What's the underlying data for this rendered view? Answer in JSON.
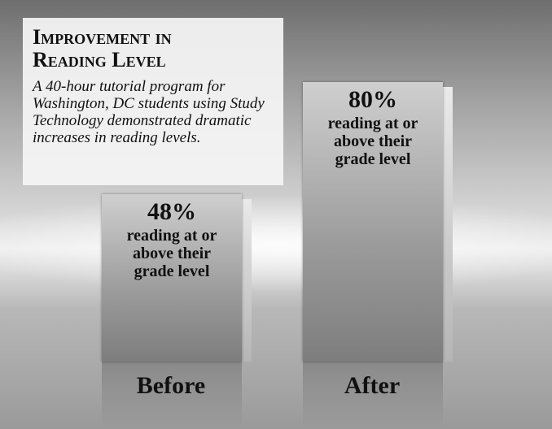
{
  "chart_data": {
    "type": "bar",
    "title": "Improvement in Reading Level",
    "subtitle": "A 40-hour tutorial program for Washington, DC students using Study Technology demonstrated dramatic increases in reading levels.",
    "categories": [
      "Before",
      "After"
    ],
    "values": [
      48,
      80
    ],
    "value_labels": [
      "48%",
      "80%"
    ],
    "value_notes": [
      "reading at or above their grade level",
      "reading at or above their grade level"
    ]
  }
}
